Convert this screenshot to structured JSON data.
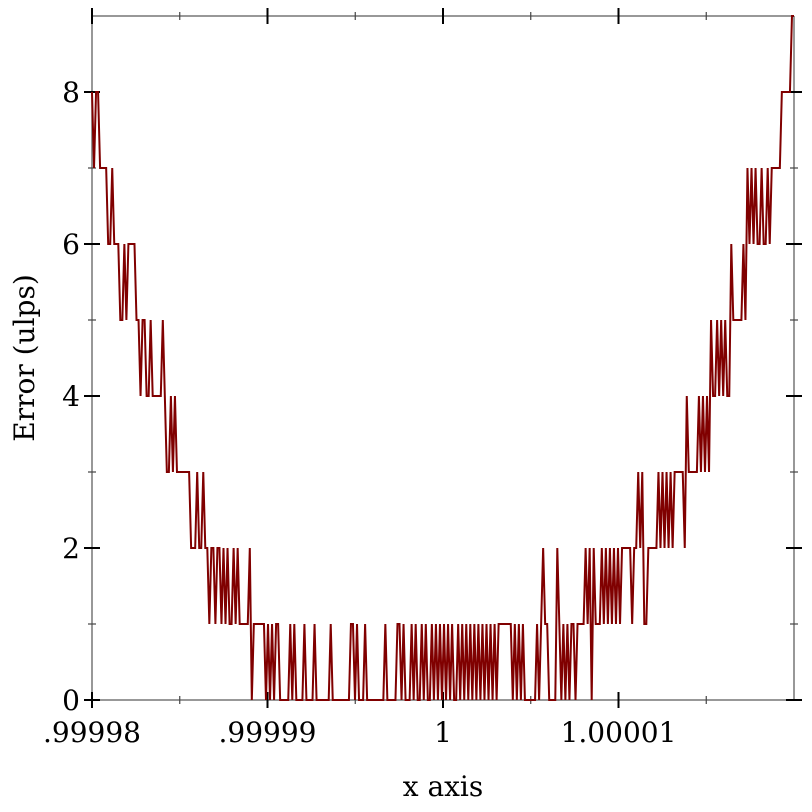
{
  "chart_data": {
    "type": "line",
    "title": "",
    "xlabel": "x axis",
    "ylabel": "Error (ulps)",
    "xlim": [
      0.99998,
      1.00002
    ],
    "ylim": [
      0,
      9
    ],
    "x_ticks": [
      {
        "value": 0.99998,
        "label": ".99998"
      },
      {
        "value": 0.99999,
        "label": ".99999"
      },
      {
        "value": 1.0,
        "label": "1"
      },
      {
        "value": 1.00001,
        "label": "1.00001"
      }
    ],
    "x_minor_ticks": [
      0.999985,
      0.999995,
      1.000005,
      1.000015
    ],
    "y_ticks": [
      {
        "value": 0,
        "label": "0"
      },
      {
        "value": 2,
        "label": "2"
      },
      {
        "value": 4,
        "label": "4"
      },
      {
        "value": 6,
        "label": "6"
      },
      {
        "value": 8,
        "label": "8"
      }
    ],
    "y_minor_ticks": [
      1,
      3,
      5,
      7
    ],
    "grid": false,
    "series": [
      {
        "color": "#800000",
        "x_spacing": "uniform over xlim",
        "y": [
          8,
          7,
          8,
          8,
          7,
          7,
          7,
          7,
          6,
          6,
          7,
          6,
          6,
          6,
          5,
          5,
          6,
          5,
          6,
          6,
          6,
          6,
          5,
          5,
          4,
          5,
          5,
          4,
          4,
          5,
          4,
          4,
          4,
          4,
          4,
          5,
          4,
          3,
          3,
          4,
          3,
          4,
          3,
          3,
          3,
          3,
          3,
          3,
          3,
          2,
          2,
          2,
          3,
          2,
          2,
          3,
          2,
          2,
          1,
          2,
          2,
          1,
          2,
          2,
          1,
          2,
          1,
          2,
          1,
          1,
          2,
          1,
          2,
          1,
          1,
          1,
          1,
          1,
          2,
          0,
          1,
          1,
          1,
          1,
          1,
          1,
          0,
          1,
          0,
          1,
          0,
          1,
          1,
          0,
          0,
          0,
          0,
          0,
          1,
          0,
          1,
          0,
          0,
          0,
          0,
          1,
          0,
          0,
          0,
          0,
          1,
          0,
          0,
          0,
          0,
          0,
          0,
          0,
          1,
          0,
          0,
          0,
          0,
          0,
          0,
          0,
          0,
          0,
          1,
          1,
          0,
          1,
          0,
          0,
          0,
          1,
          0,
          0,
          0,
          0,
          0,
          0,
          0,
          0,
          0,
          1,
          0,
          0,
          0,
          0,
          0,
          1,
          1,
          0,
          1,
          0,
          0,
          0,
          1,
          0,
          1,
          0,
          0,
          1,
          0,
          1,
          0,
          0,
          1,
          0,
          1,
          0,
          1,
          0,
          1,
          0,
          1,
          0,
          1,
          0,
          0,
          1,
          0,
          1,
          0,
          1,
          0,
          1,
          0,
          1,
          0,
          1,
          0,
          1,
          0,
          1,
          0,
          1,
          0,
          1,
          0,
          1,
          1,
          1,
          1,
          1,
          1,
          1,
          0,
          1,
          0,
          1,
          0,
          1,
          0,
          0,
          0,
          0,
          0,
          0,
          1,
          0,
          1,
          2,
          1,
          1,
          0,
          0,
          0,
          0,
          2,
          1,
          0,
          1,
          0,
          1,
          0,
          1,
          1,
          0,
          1,
          1,
          1,
          1,
          2,
          1,
          2,
          0,
          2,
          1,
          1,
          1,
          2,
          1,
          2,
          1,
          2,
          1,
          2,
          1,
          2,
          1,
          2,
          2,
          2,
          2,
          2,
          1,
          2,
          2,
          3,
          2,
          3,
          1,
          1,
          2,
          2,
          2,
          2,
          2,
          3,
          2,
          3,
          2,
          3,
          2,
          3,
          2,
          3,
          3,
          3,
          3,
          3,
          2,
          4,
          3,
          3,
          3,
          3,
          3,
          4,
          3,
          4,
          3,
          4,
          3,
          5,
          4,
          4,
          5,
          4,
          5,
          4,
          5,
          4,
          4,
          6,
          5,
          5,
          5,
          5,
          5,
          6,
          5,
          7,
          6,
          7,
          6,
          7,
          6,
          6,
          7,
          6,
          6,
          7,
          6,
          7,
          7,
          7,
          7,
          7,
          8,
          8,
          8,
          8,
          8,
          9,
          9
        ]
      }
    ]
  }
}
